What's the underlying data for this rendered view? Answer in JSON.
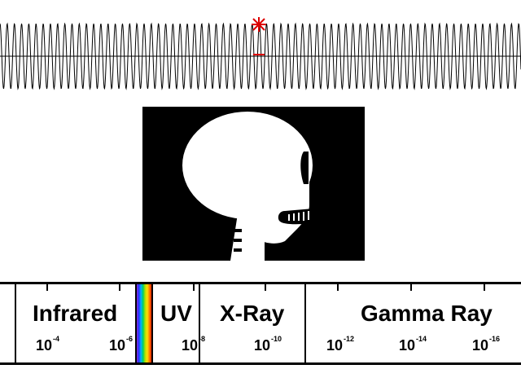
{
  "spectrum": {
    "regions": [
      {
        "name": "Infrared"
      },
      {
        "name": "UV"
      },
      {
        "name": "X-Ray"
      },
      {
        "name": "Gamma Ray"
      }
    ],
    "ticks": [
      {
        "base": "10",
        "exp": "-4"
      },
      {
        "base": "10",
        "exp": "-6"
      },
      {
        "base": "10",
        "exp": "-8"
      },
      {
        "base": "10",
        "exp": "-10"
      },
      {
        "base": "10",
        "exp": "-12"
      },
      {
        "base": "10",
        "exp": "-14"
      },
      {
        "base": "10",
        "exp": "-16"
      }
    ]
  },
  "colors": {
    "marker": "#dd0000",
    "wave": "#000000",
    "image_bg": "#000000",
    "skull": "#ffffff"
  }
}
